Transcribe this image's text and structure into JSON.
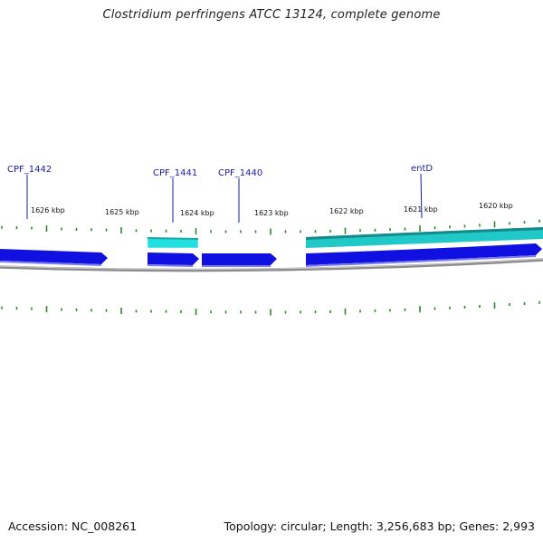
{
  "title": "Clostridium perfringens ATCC 13124, complete genome",
  "footer": {
    "accession": "Accession: NC_008261",
    "stats": "Topology: circular; Length: 3,256,683 bp; Genes: 2,993"
  },
  "kbp_labels": [
    "1626 kbp",
    "1625 kbp",
    "1624 kbp",
    "1623 kbp",
    "1622 kbp",
    "1621 kbp",
    "1620 kbp"
  ],
  "gene_labels": [
    "CPF_1442",
    "CPF_1441",
    "CPF_1440",
    "entD"
  ],
  "colors": {
    "cds": "#1010e0",
    "gene": "#22dddd",
    "gene_dark": "#1a9a9a",
    "backbone": "#8a8a8a",
    "ticks": "#2a8a2a",
    "label": "#1a1aa8"
  }
}
